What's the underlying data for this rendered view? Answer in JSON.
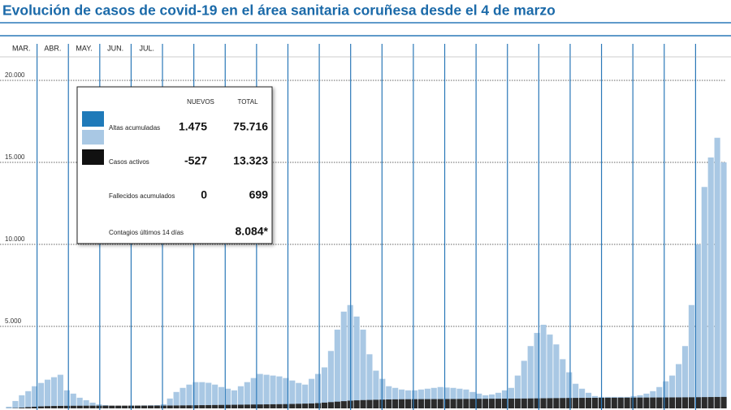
{
  "chart_data": {
    "type": "bar",
    "title": "Evolución de casos de covid-19 en el área sanitaria coruñesa desde el 4 de marzo",
    "month_labels": [
      "MAR.",
      "ABR.",
      "MAY.",
      "JUN.",
      "JUL.",
      null,
      null,
      null,
      null,
      null,
      null,
      null,
      null,
      null,
      null,
      null,
      null,
      null,
      null,
      null,
      null,
      null,
      null
    ],
    "ylim": [
      0,
      20000
    ],
    "yticks": [
      {
        "value": 5000,
        "label": "5.000"
      },
      {
        "value": 10000,
        "label": "10.000"
      },
      {
        "value": 15000,
        "label": "15.000"
      },
      {
        "value": 20000,
        "label": "20.000"
      }
    ],
    "grid": true,
    "series": [
      {
        "color": "#a9c8e4",
        "values": [
          100,
          450,
          800,
          1050,
          1350,
          1550,
          1750,
          1900,
          2050,
          1100,
          900,
          650,
          500,
          350,
          240,
          200,
          160,
          150,
          150,
          160,
          170,
          180,
          190,
          200,
          250,
          600,
          1000,
          1250,
          1450,
          1600,
          1600,
          1560,
          1450,
          1300,
          1200,
          1100,
          1350,
          1600,
          1850,
          2100,
          2050,
          2000,
          1950,
          1850,
          1700,
          1550,
          1450,
          1800,
          2100,
          2500,
          3500,
          4800,
          5900,
          6300,
          5600,
          4800,
          3300,
          2300,
          1800,
          1350,
          1250,
          1150,
          1100,
          1100,
          1150,
          1200,
          1250,
          1300,
          1270,
          1250,
          1200,
          1150,
          1000,
          900,
          800,
          850,
          950,
          1100,
          1250,
          2000,
          2900,
          3800,
          4600,
          5100,
          4500,
          3900,
          3000,
          2200,
          1500,
          1200,
          950,
          750,
          700,
          700,
          700,
          700,
          700,
          750,
          800,
          900,
          1050,
          1300,
          1650,
          2000,
          2700,
          3800,
          6300,
          10000,
          13500,
          15300,
          16500,
          15000
        ]
      },
      {
        "color": "#2b2b2b",
        "values": [
          5,
          20,
          45,
          75,
          100,
          120,
          135,
          145,
          150,
          155,
          158,
          160,
          162,
          163,
          164,
          165,
          165,
          166,
          166,
          167,
          167,
          168,
          168,
          169,
          170,
          172,
          175,
          180,
          185,
          190,
          195,
          200,
          205,
          210,
          215,
          220,
          225,
          230,
          235,
          240,
          245,
          250,
          255,
          260,
          270,
          280,
          290,
          300,
          320,
          350,
          380,
          410,
          440,
          470,
          490,
          505,
          515,
          525,
          535,
          545,
          550,
          555,
          558,
          560,
          562,
          564,
          566,
          568,
          570,
          572,
          575,
          578,
          580,
          583,
          585,
          588,
          590,
          593,
          595,
          598,
          600,
          605,
          610,
          615,
          620,
          625,
          630,
          635,
          638,
          640,
          642,
          644,
          646,
          648,
          650,
          652,
          654,
          656,
          658,
          660,
          662,
          664,
          666,
          668,
          670,
          673,
          676,
          680,
          685,
          690,
          695,
          699
        ]
      }
    ],
    "table": {
      "headers": [
        "NUEVOS",
        "TOTAL"
      ],
      "rows": [
        {
          "label": "Altas acumuladas",
          "nuevos": "1.475",
          "total": "75.716"
        },
        {
          "label": "Casos activos",
          "nuevos": "-527",
          "total": "13.323"
        },
        {
          "label": "Fallecidos acumulados",
          "nuevos": "0",
          "total": "699"
        },
        {
          "label": "Contagios últimos 14 días",
          "total": "8.084*"
        }
      ]
    }
  }
}
